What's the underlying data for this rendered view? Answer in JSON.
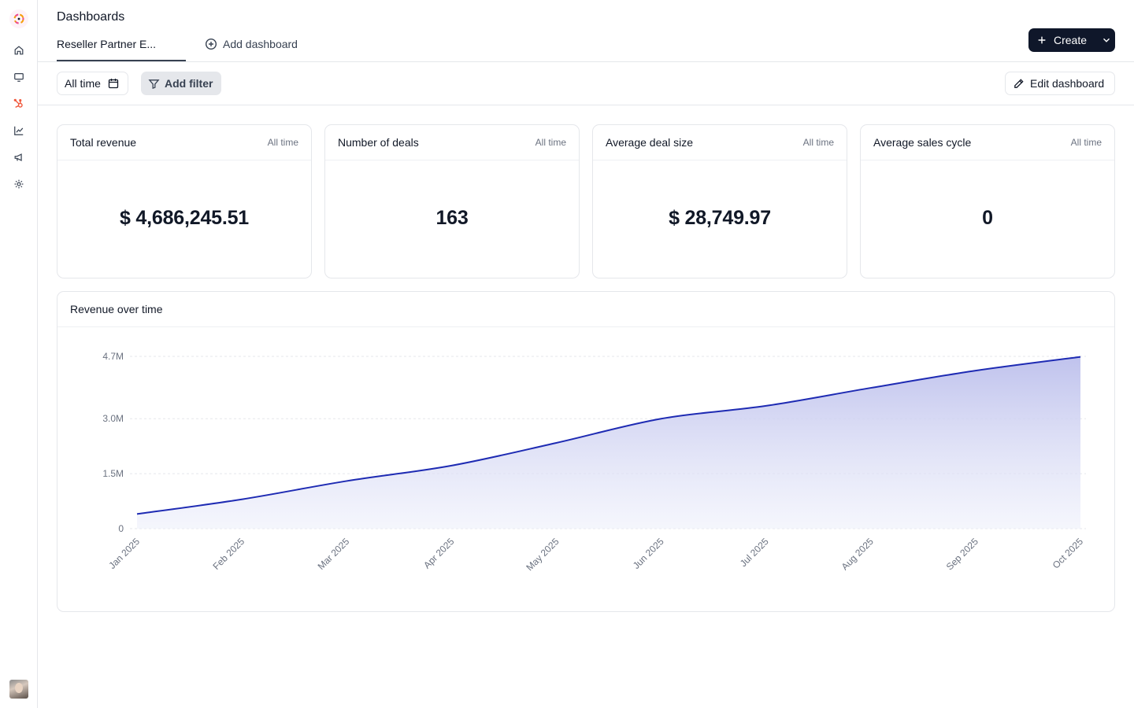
{
  "header": {
    "title": "Dashboards",
    "tabs": [
      {
        "label": "Reseller Partner E..."
      }
    ],
    "add_dashboard_label": "Add dashboard",
    "create_label": "Create"
  },
  "toolbar": {
    "time_filter_label": "All time",
    "add_filter_label": "Add filter",
    "edit_dashboard_label": "Edit dashboard"
  },
  "kpis": [
    {
      "title": "Total revenue",
      "range": "All time",
      "value": "$ 4,686,245.51"
    },
    {
      "title": "Number of deals",
      "range": "All time",
      "value": "163"
    },
    {
      "title": "Average deal size",
      "range": "All time",
      "value": "$ 28,749.97"
    },
    {
      "title": "Average sales cycle",
      "range": "All time",
      "value": "0"
    }
  ],
  "sidebar": {
    "icons": [
      "home-icon",
      "monitor-icon",
      "hubspot-icon",
      "chart-line-icon",
      "megaphone-icon",
      "gear-icon"
    ]
  },
  "colors": {
    "accent": "#0f172a",
    "series_line": "#1e2bb3",
    "series_fill": "#c7c9ee",
    "hubspot": "#f0573b"
  },
  "chart_data": {
    "type": "area",
    "title": "Revenue over time",
    "xlabel": "",
    "ylabel": "",
    "categories": [
      "Jan 2025",
      "Feb 2025",
      "Mar 2025",
      "Apr 2025",
      "May 2025",
      "Jun 2025",
      "Jul 2025",
      "Aug 2025",
      "Sep 2025",
      "Oct 2025"
    ],
    "series": [
      {
        "values": [
          400000,
          800000,
          1300000,
          1720000,
          2340000,
          3000000,
          3350000,
          3840000,
          4310000,
          4686245.51
        ]
      }
    ],
    "yticks": [
      {
        "value": 0,
        "label": "0"
      },
      {
        "value": 1500000,
        "label": "1.5M"
      },
      {
        "value": 3000000,
        "label": "3.0M"
      },
      {
        "value": 4700000,
        "label": "4.7M"
      }
    ],
    "ylim": [
      0,
      4700000
    ],
    "grid": true,
    "legend": "none"
  }
}
